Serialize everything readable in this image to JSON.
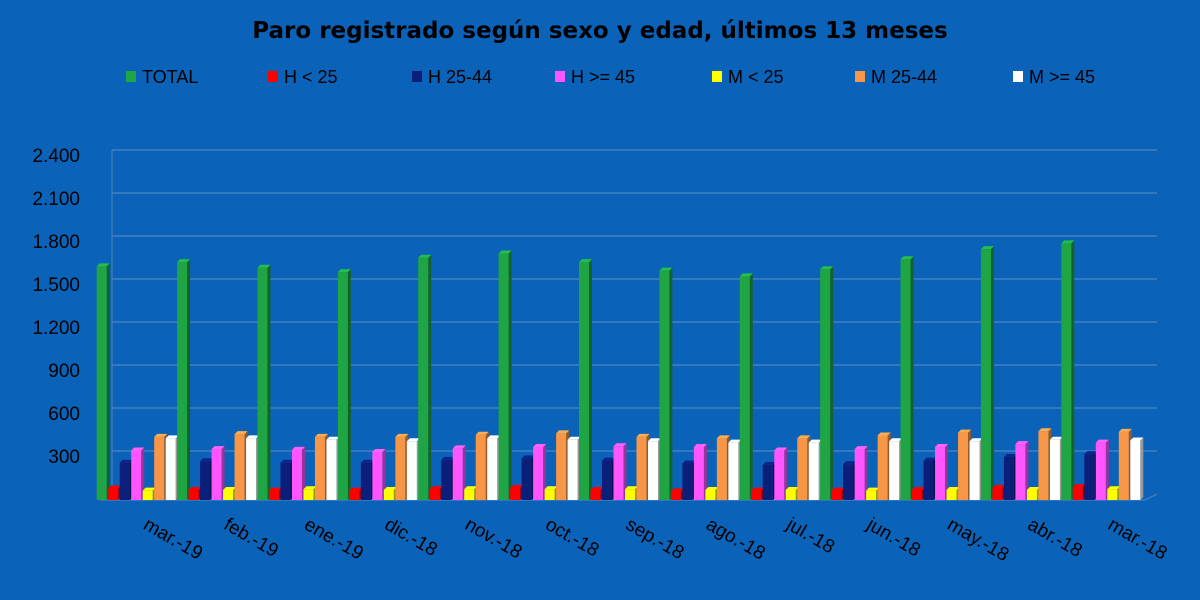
{
  "chart_data": {
    "type": "bar",
    "title": "Paro registrado según sexo y edad, últimos 13 meses",
    "xlabel": "",
    "ylabel": "",
    "ylim": [
      0,
      2400
    ],
    "yticks": [
      "300",
      "600",
      "900",
      "1.200",
      "1.500",
      "1.800",
      "2.100",
      "2.400"
    ],
    "ytick_values": [
      300,
      600,
      900,
      1200,
      1500,
      1800,
      2100,
      2400
    ],
    "grid": true,
    "legend_position": "top",
    "categories": [
      "mar.-19",
      "feb.-19",
      "ene.-19",
      "dic.-18",
      "nov.-18",
      "oct.-18",
      "sep.-18",
      "ago.-18",
      "jul.-18",
      "jun.-18",
      "may.-18",
      "abr.-18",
      "mar.-18"
    ],
    "series": [
      {
        "name": "TOTAL",
        "color": "#1fa543",
        "values": [
          1630,
          1660,
          1620,
          1590,
          1690,
          1720,
          1660,
          1600,
          1560,
          1610,
          1680,
          1750,
          1790
        ]
      },
      {
        "name": "H < 25",
        "color": "#ff0000",
        "values": [
          80,
          70,
          65,
          65,
          75,
          85,
          70,
          60,
          65,
          65,
          70,
          85,
          90
        ]
      },
      {
        "name": "H 25-44",
        "color": "#0b1f7a",
        "values": [
          260,
          270,
          260,
          260,
          280,
          290,
          275,
          255,
          245,
          250,
          275,
          300,
          320
        ]
      },
      {
        "name": "H >= 45",
        "color": "#ff55ff",
        "values": [
          345,
          355,
          350,
          335,
          360,
          370,
          375,
          370,
          345,
          355,
          370,
          390,
          400
        ]
      },
      {
        "name": "M < 25",
        "color": "#ffff00",
        "values": [
          65,
          70,
          75,
          70,
          75,
          75,
          75,
          70,
          70,
          65,
          70,
          70,
          75
        ]
      },
      {
        "name": "M 25-44",
        "color": "#f79646",
        "values": [
          440,
          460,
          440,
          440,
          455,
          465,
          440,
          430,
          430,
          450,
          470,
          480,
          475
        ]
      },
      {
        "name": "M >= 45",
        "color": "#ffffff",
        "values": [
          430,
          430,
          420,
          410,
          430,
          420,
          410,
          400,
          400,
          410,
          410,
          420,
          415
        ]
      }
    ]
  }
}
